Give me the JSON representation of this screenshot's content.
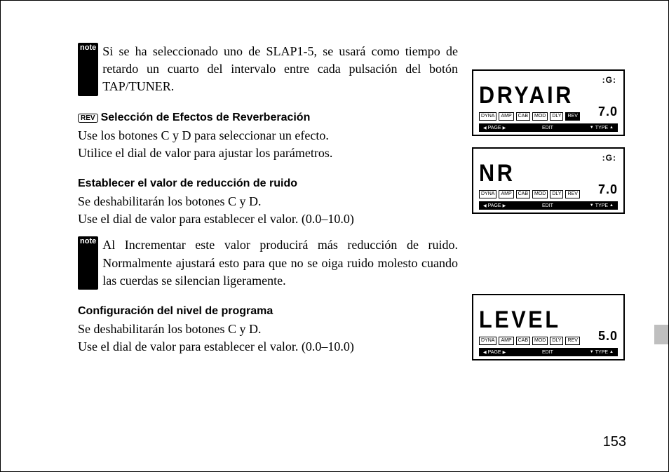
{
  "note_label": "note",
  "rev_label": "REV",
  "intro_note": "Si se ha seleccionado uno de SLAP1-5, se usará como tiempo de retardo un cuarto del intervalo entre cada pulsación del botón TAP/TUNER.",
  "section1": {
    "heading": "Selección de Efectos de Reverberación",
    "line1": "Use los botones C y D para seleccionar un efecto.",
    "line2": "Utilice el dial de valor para ajustar los parámetros."
  },
  "section2": {
    "heading": "Establecer el valor de reducción de ruido",
    "line1": "Se deshabilitarán los botones C y D.",
    "line2": "Use el dial de valor para establecer el valor. (0.0–10.0)",
    "note": "Al  Incrementar  este  valor  producirá  más  reducción  de  ruido.  Normalmente  ajustará  esto  para que no se oiga ruido molesto cuando las cuerdas se silencian ligeramente."
  },
  "section3": {
    "heading": "Configuración del nivel de programa",
    "line1": "Se deshabilitarán los botones C y D.",
    "line2": "Use el dial de valor para establecer el valor. (0.0–10.0)"
  },
  "page_number": "153",
  "lcd": {
    "dial_glyph": "⦾",
    "tags": [
      "DYNA",
      "AMP",
      "CAB",
      "MOD",
      "DLY",
      "REV"
    ],
    "bar_page": "PAGE",
    "bar_edit": "EDIT",
    "bar_type": "TYPE",
    "screens": [
      {
        "text": "DRYAIR",
        "value": "7.0",
        "show_dial": true,
        "rev_filled": true
      },
      {
        "text": "NR",
        "value": "7.0",
        "show_dial": true,
        "rev_filled": false
      },
      {
        "text": "LEVEL",
        "value": "5.0",
        "show_dial": false,
        "rev_filled": false
      }
    ]
  },
  "colors": {
    "text": "#000000",
    "bg": "#ffffff",
    "tab": "#bfbfbf"
  }
}
